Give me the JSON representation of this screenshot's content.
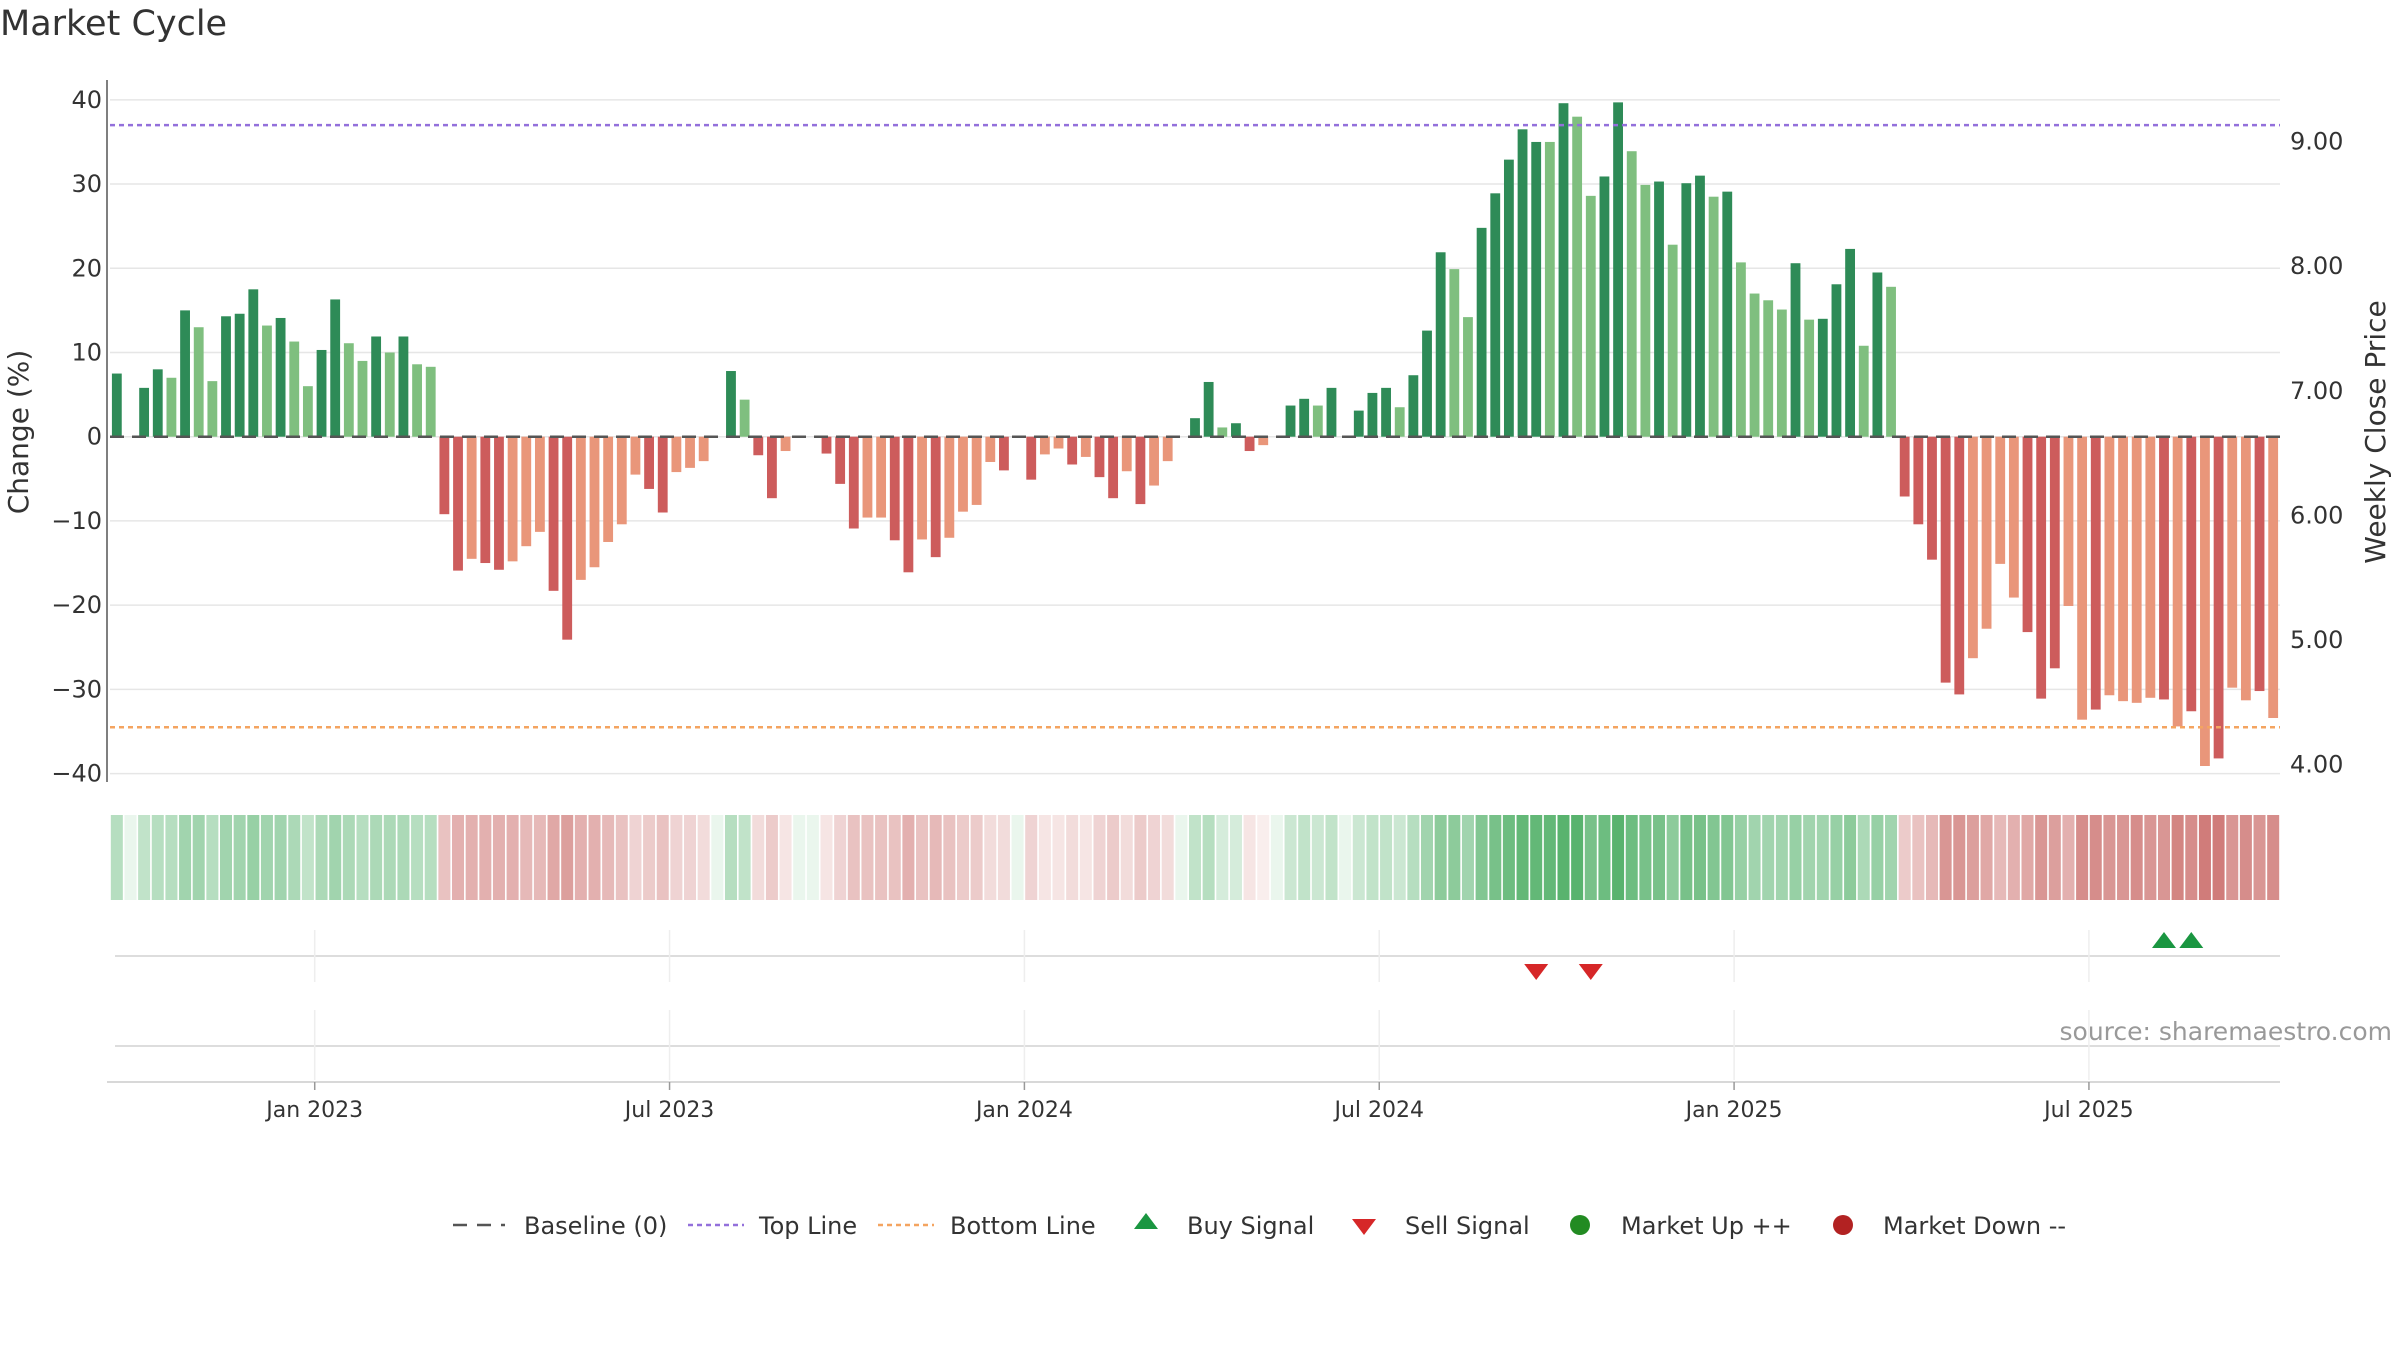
{
  "title": "Market Cycle",
  "source": "source: sharemaestro.com",
  "colors": {
    "up_dark": "#2e8b57",
    "up_light": "#7fbf7f",
    "down_dark": "#cd5c5c",
    "down_light": "#e9967a",
    "top_line": "#9370db",
    "bottom_line": "#f4a460",
    "baseline": "#555555",
    "buy": "#1a9641",
    "sell": "#d62728",
    "market_up": "#228b22",
    "market_down": "#b22222"
  },
  "legend": {
    "baseline": "Baseline (0)",
    "top_line": "Top Line",
    "bottom_line": "Bottom Line",
    "buy": "Buy Signal",
    "sell": "Sell Signal",
    "market_up": "Market Up ++",
    "market_down": "Market Down --"
  },
  "chart_data": {
    "type": "bar",
    "ylabel": "Change (%)",
    "y2label": "Weekly Close Price",
    "ylim": [
      -41,
      42
    ],
    "yticks": [
      40,
      30,
      20,
      10,
      0,
      -10,
      -20,
      -30,
      -40
    ],
    "ytick_labels": [
      "40",
      "30",
      "20",
      "10",
      "0",
      "−10",
      "−20",
      "−30",
      "−40"
    ],
    "y2lim": [
      3.86,
      9.47
    ],
    "y2ticks": [
      9,
      8,
      7,
      6,
      5,
      4
    ],
    "y2tick_labels": [
      "9.00",
      "8.00",
      "7.00",
      "6.00",
      "5.00",
      "4.00"
    ],
    "xtick_labels": [
      "Jan 2023",
      "Jul 2023",
      "Jan 2024",
      "Jul 2024",
      "Jan 2025",
      "Jul 2025"
    ],
    "xtick_week_index": [
      15,
      41,
      67,
      93,
      119,
      145
    ],
    "top_line": 37,
    "bottom_line": -34.5,
    "grid": true,
    "legend_position": "bottom",
    "series": [
      {
        "values": [
          7.5,
          0,
          5.8,
          8,
          7,
          15,
          13,
          6.6,
          14.3,
          14.6,
          17.5,
          13.2,
          14.1,
          11.3,
          6,
          10.3,
          16.3,
          11.1,
          9,
          11.9,
          10,
          11.9,
          8.6,
          8.3,
          -9.2,
          -15.9,
          -14.5,
          -15,
          -15.8,
          -14.8,
          -13,
          -11.3,
          -18.3,
          -24.1,
          -17,
          -15.5,
          -12.5,
          -10.4,
          -4.5,
          -6.2,
          -9,
          -4.2,
          -3.7,
          -2.9,
          0,
          7.8,
          4.4,
          -2.2,
          -7.3,
          -1.7,
          0,
          0,
          -2,
          -5.6,
          -10.9,
          -9.6,
          -9.6,
          -12.3,
          -16.1,
          -12.2,
          -14.3,
          -12,
          -8.9,
          -8.1,
          -3,
          -4,
          0,
          -5.1,
          -2.1,
          -1.4,
          -3.3,
          -2.4,
          -4.8,
          -7.3,
          -4.1,
          -8,
          -5.8,
          -2.9,
          0,
          2.2,
          6.5,
          1.1,
          1.6,
          -1.7,
          -1,
          0,
          3.7,
          4.5,
          3.7,
          5.8,
          0,
          3.1,
          5.2,
          5.8,
          3.5,
          7.3,
          12.6,
          21.9,
          19.9,
          14.2,
          24.8,
          28.9,
          32.9,
          36.5,
          35,
          35,
          39.6,
          38,
          28.6,
          30.9,
          39.7,
          33.9,
          29.9,
          30.3,
          22.8,
          30.1,
          31,
          28.5,
          29.1,
          20.7,
          17,
          16.2,
          15.1,
          20.6,
          13.9,
          14,
          18.1,
          22.3,
          10.8,
          19.5,
          17.8,
          -7.1,
          -10.4,
          -14.6,
          -29.2,
          -30.6,
          -26.3,
          -22.8,
          -15.1,
          -19.1,
          -23.2,
          -31.1,
          -27.5,
          -20.1,
          -33.6,
          -32.4,
          -30.7,
          -31.4,
          -31.6,
          -31,
          -31.2,
          -34.4,
          -32.6,
          -39.1,
          -38.2,
          -29.8,
          -31.3,
          -30.2,
          -33.4
        ]
      }
    ],
    "bar_shade": [
      0,
      0,
      0,
      0,
      1,
      0,
      1,
      1,
      0,
      0,
      0,
      1,
      0,
      1,
      1,
      0,
      0,
      1,
      1,
      0,
      1,
      0,
      1,
      1,
      0,
      0,
      1,
      0,
      0,
      1,
      1,
      1,
      0,
      0,
      1,
      1,
      1,
      1,
      1,
      0,
      0,
      1,
      1,
      1,
      0,
      0,
      1,
      0,
      0,
      1,
      0,
      0,
      0,
      0,
      0,
      1,
      1,
      0,
      0,
      1,
      0,
      1,
      1,
      1,
      1,
      0,
      0,
      0,
      1,
      1,
      0,
      1,
      0,
      0,
      1,
      0,
      1,
      1,
      0,
      0,
      0,
      1,
      0,
      0,
      1,
      0,
      0,
      0,
      1,
      0,
      0,
      0,
      0,
      0,
      1,
      0,
      0,
      0,
      1,
      1,
      0,
      0,
      0,
      0,
      0,
      1,
      0,
      1,
      1,
      0,
      0,
      1,
      1,
      0,
      1,
      0,
      0,
      1,
      0,
      1,
      1,
      1,
      1,
      0,
      1,
      0,
      0,
      0,
      1,
      0,
      1,
      0,
      0,
      0,
      0,
      0,
      1,
      1,
      1,
      1,
      0,
      0,
      0,
      1,
      1,
      0,
      1,
      1,
      1,
      1,
      0,
      1,
      0,
      1,
      0,
      1,
      1,
      0,
      1,
      0
    ],
    "heat_strength": [
      0.35,
      0.1,
      0.3,
      0.35,
      0.35,
      0.45,
      0.45,
      0.35,
      0.45,
      0.45,
      0.5,
      0.45,
      0.45,
      0.4,
      0.3,
      0.4,
      0.45,
      0.4,
      0.35,
      0.4,
      0.4,
      0.4,
      0.35,
      0.35,
      0.35,
      0.45,
      0.45,
      0.45,
      0.45,
      0.45,
      0.4,
      0.4,
      0.5,
      0.55,
      0.45,
      0.45,
      0.4,
      0.35,
      0.25,
      0.3,
      0.35,
      0.25,
      0.25,
      0.2,
      0.1,
      0.35,
      0.3,
      0.2,
      0.3,
      0.15,
      0.1,
      0.1,
      0.15,
      0.25,
      0.35,
      0.35,
      0.35,
      0.35,
      0.45,
      0.35,
      0.4,
      0.35,
      0.3,
      0.3,
      0.2,
      0.2,
      0.1,
      0.25,
      0.15,
      0.15,
      0.2,
      0.15,
      0.25,
      0.3,
      0.2,
      0.3,
      0.25,
      0.2,
      0.1,
      0.3,
      0.35,
      0.2,
      0.2,
      0.15,
      0.1,
      0.1,
      0.25,
      0.3,
      0.25,
      0.3,
      0.1,
      0.25,
      0.3,
      0.3,
      0.25,
      0.35,
      0.45,
      0.55,
      0.55,
      0.45,
      0.6,
      0.65,
      0.7,
      0.75,
      0.75,
      0.75,
      0.8,
      0.8,
      0.65,
      0.7,
      0.8,
      0.7,
      0.65,
      0.65,
      0.55,
      0.65,
      0.65,
      0.6,
      0.6,
      0.5,
      0.45,
      0.45,
      0.45,
      0.5,
      0.45,
      0.45,
      0.5,
      0.55,
      0.4,
      0.5,
      0.45,
      0.3,
      0.35,
      0.4,
      0.6,
      0.6,
      0.55,
      0.5,
      0.4,
      0.45,
      0.5,
      0.6,
      0.55,
      0.45,
      0.65,
      0.65,
      0.6,
      0.6,
      0.65,
      0.6,
      0.6,
      0.7,
      0.65,
      0.75,
      0.75,
      0.6,
      0.65,
      0.6,
      0.65
    ],
    "buy_signals_week_index": [
      150,
      152
    ],
    "sell_signals_week_index": [
      104,
      108
    ]
  }
}
